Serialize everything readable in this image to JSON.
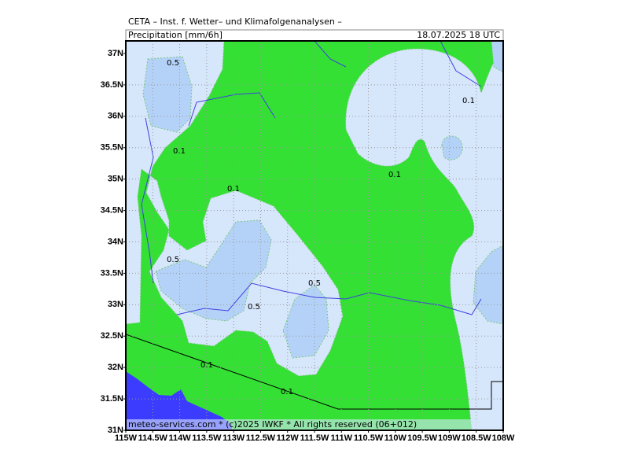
{
  "header": {
    "title": "CETA – Inst. f. Wetter– und Klimafolgenanalysen –",
    "subtitle": "Precipitation [mm/6h]",
    "valid_time": "18.07.2025 18 UTC"
  },
  "axes": {
    "latitude_labels": [
      "37N",
      "36.5N",
      "36N",
      "35.5N",
      "35N",
      "34.5N",
      "34N",
      "33.5N",
      "33N",
      "32.5N",
      "32N",
      "31.5N",
      "31N"
    ],
    "longitude_labels": [
      "115W",
      "114.5W",
      "114W",
      "113.5W",
      "113W",
      "112.5W",
      "112W",
      "111.5W",
      "111W",
      "110.5W",
      "110W",
      "109.5W",
      "109W",
      "108.5W",
      "108W"
    ]
  },
  "contour_labels": [
    "0.5",
    "0.1",
    "0.1",
    "0.5",
    "0.5",
    "0.5",
    "0.1",
    "0.1",
    "0.1",
    "0.1"
  ],
  "footer": "meteo-services.com * (c)2025 IWKF * All rights reserved (06+012)"
}
